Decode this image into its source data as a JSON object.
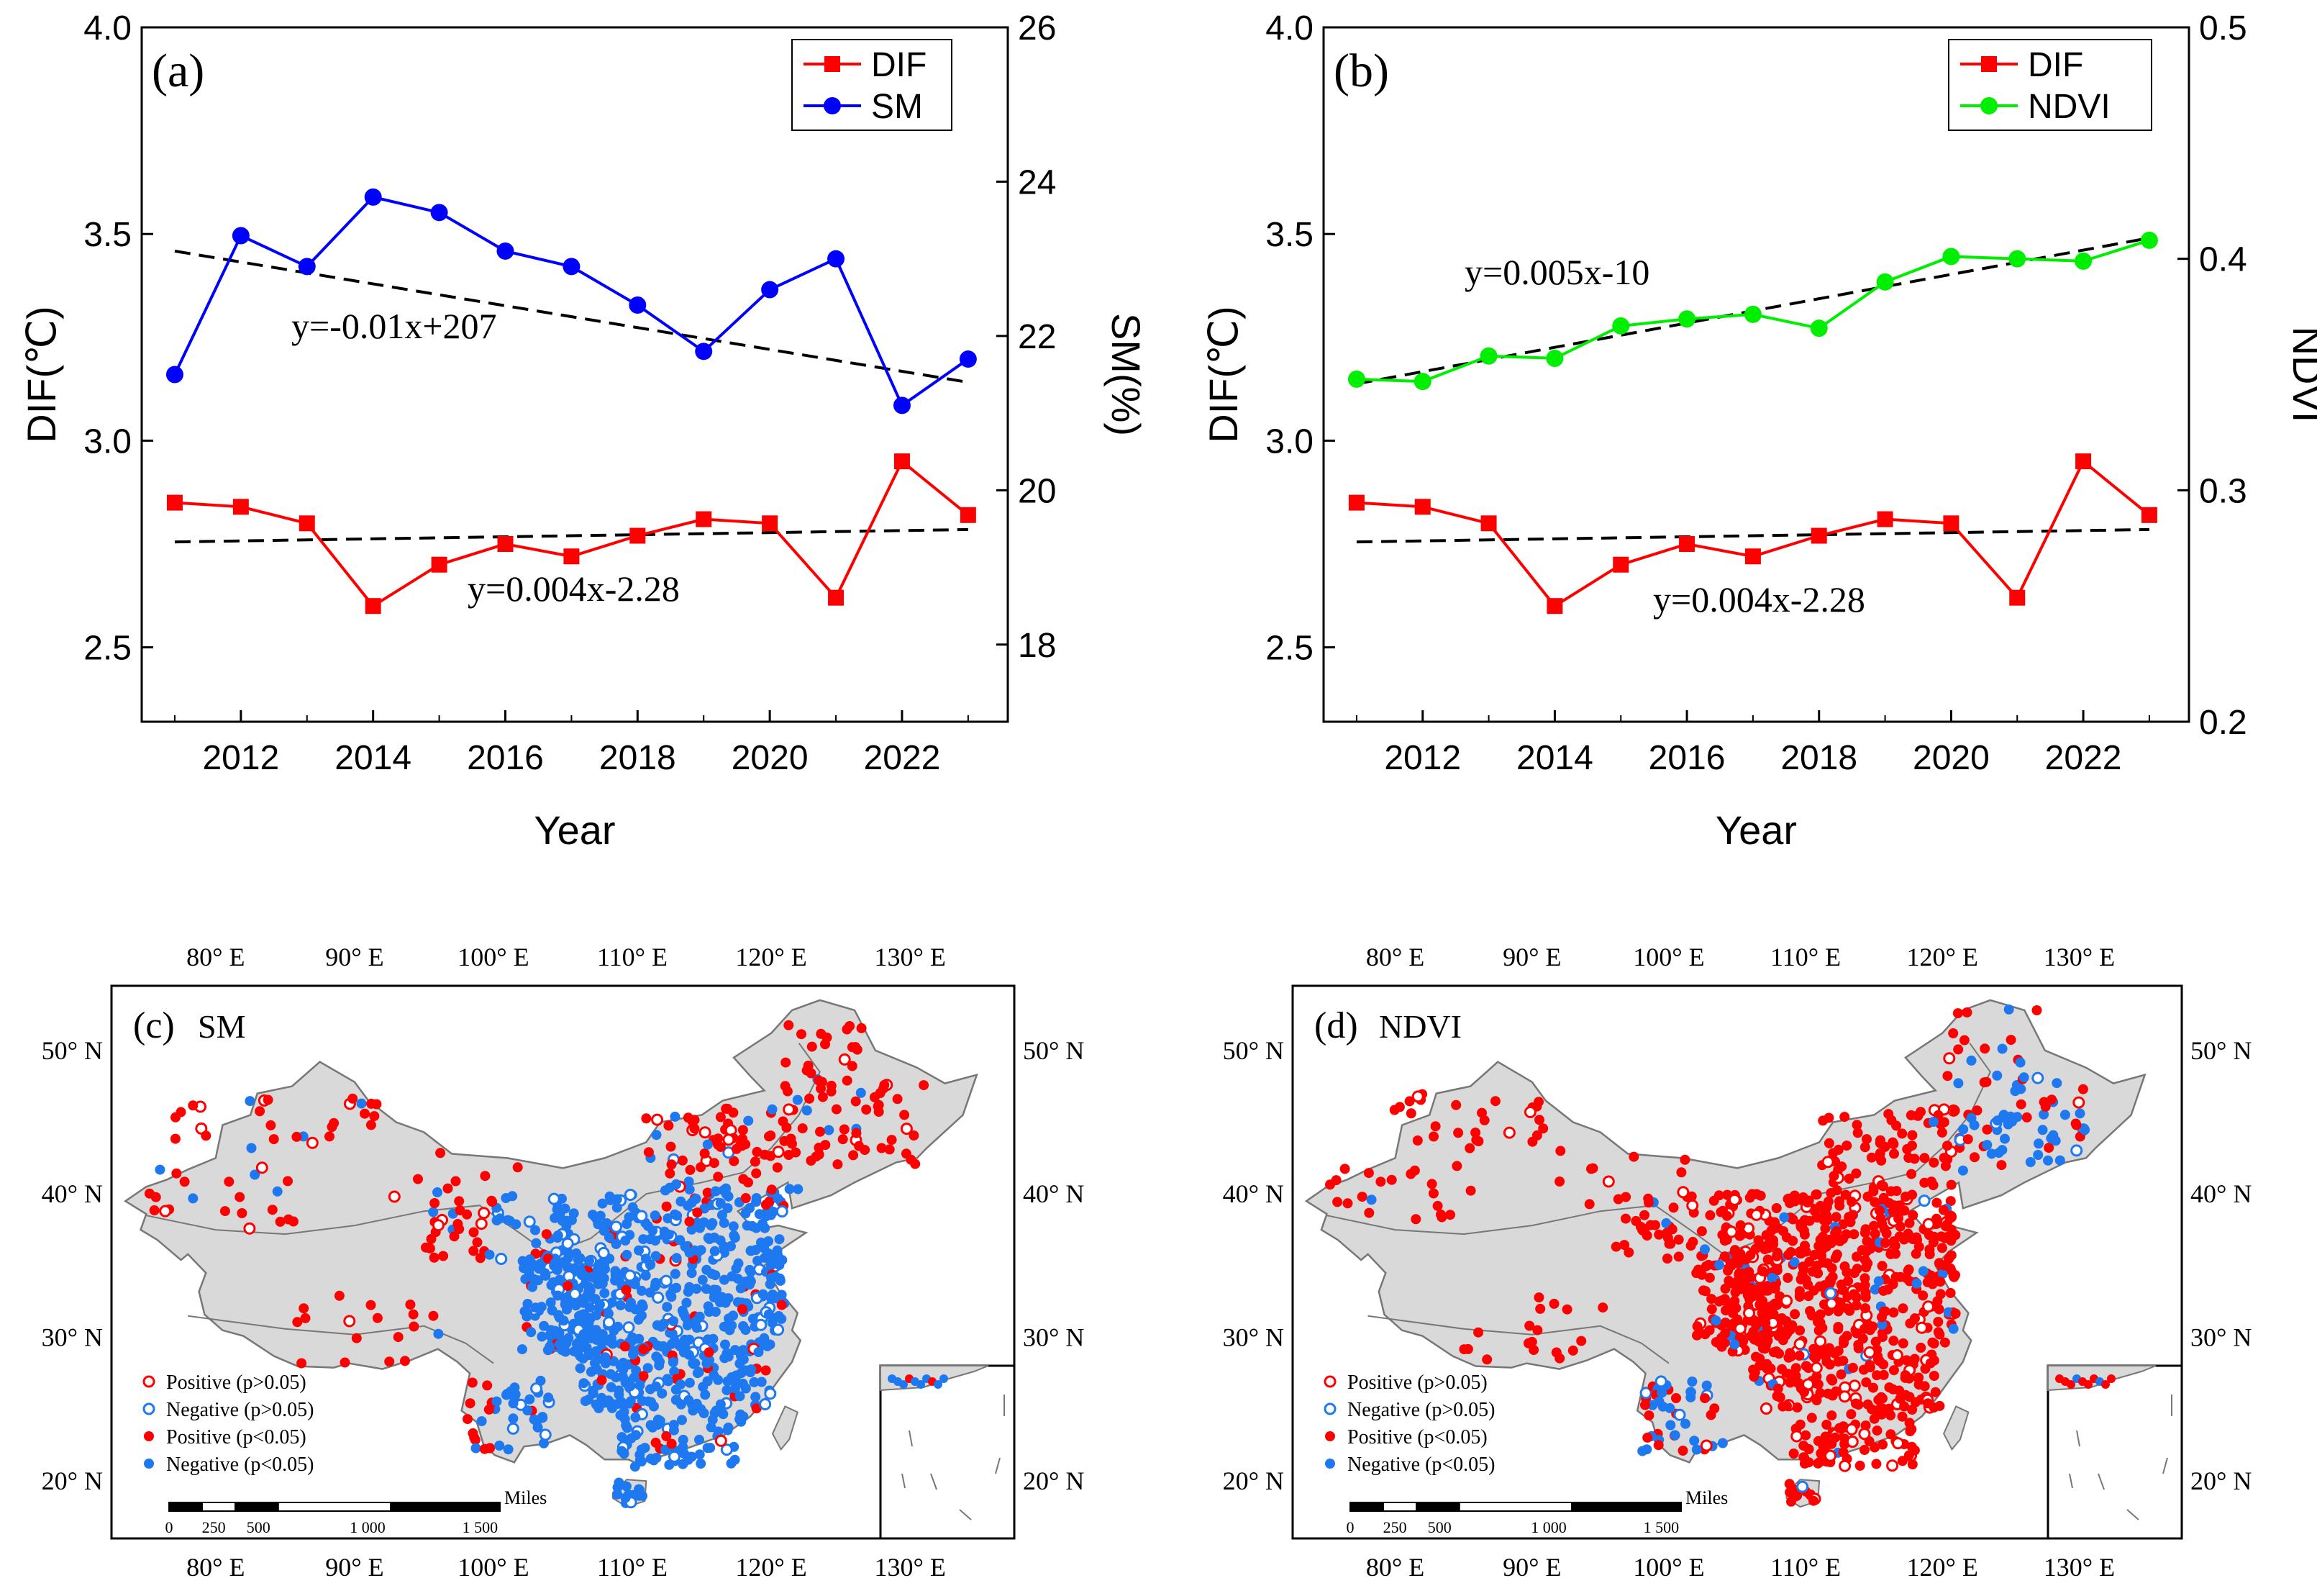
{
  "colors": {
    "dif": "#ff0000",
    "sm": "#0000ff",
    "ndvi": "#00ee00",
    "trend": "#000000",
    "land": "#d9d9d9",
    "border": "#777777",
    "positive": "#ff0000",
    "negative": "#1e78f0"
  },
  "chart_data": [
    {
      "type": "line",
      "panel_label": "(a)",
      "xlabel": "Year",
      "ylabel_left": "DIF(℃)",
      "ylabel_right": "SM(%)",
      "x_ticks": [
        "2012",
        "2014",
        "2016",
        "2018",
        "2020",
        "2022"
      ],
      "y_left_ticks": [
        "2.5",
        "3.0",
        "3.5",
        "4.0"
      ],
      "y_right_ticks": [
        "18",
        "20",
        "22",
        "24",
        "26"
      ],
      "xlim": [
        2010.5,
        2023.6
      ],
      "ylim_left": [
        2.32,
        4.0
      ],
      "ylim_right": [
        17.0,
        26.0
      ],
      "x": [
        2011,
        2012,
        2013,
        2014,
        2015,
        2016,
        2017,
        2018,
        2019,
        2020,
        2021,
        2022,
        2023
      ],
      "series": [
        {
          "name": "DIF",
          "axis": "left",
          "marker": "square",
          "color_key": "dif",
          "values": [
            2.85,
            2.84,
            2.8,
            2.6,
            2.7,
            2.75,
            2.72,
            2.77,
            2.81,
            2.8,
            2.62,
            2.95,
            2.82
          ]
        },
        {
          "name": "SM",
          "axis": "right",
          "marker": "circle",
          "color_key": "sm",
          "values": [
            21.5,
            23.3,
            22.9,
            23.8,
            23.6,
            23.1,
            22.9,
            22.4,
            21.8,
            22.6,
            23.0,
            21.1,
            21.7
          ]
        }
      ],
      "trendlines": [
        {
          "axis": "right",
          "x": [
            2011,
            2023
          ],
          "y": [
            23.1,
            21.4
          ],
          "label": "y=-0.01x+207"
        },
        {
          "axis": "left",
          "x": [
            2011,
            2023
          ],
          "y": [
            2.755,
            2.785
          ],
          "label": "y=0.004x-2.28"
        }
      ],
      "legend": [
        "DIF",
        "SM"
      ],
      "legend_position": "top-right"
    },
    {
      "type": "line",
      "panel_label": "(b)",
      "xlabel": "Year",
      "ylabel_left": "DIF(℃)",
      "ylabel_right": "NDVI",
      "x_ticks": [
        "2012",
        "2014",
        "2016",
        "2018",
        "2020",
        "2022"
      ],
      "y_left_ticks": [
        "2.5",
        "3.0",
        "3.5",
        "4.0"
      ],
      "y_right_ticks": [
        "0.2",
        "0.3",
        "0.4",
        "0.5"
      ],
      "xlim": [
        2010.5,
        2023.6
      ],
      "ylim_left": [
        2.32,
        4.0
      ],
      "ylim_right": [
        0.2,
        0.5
      ],
      "x": [
        2011,
        2012,
        2013,
        2014,
        2015,
        2016,
        2017,
        2018,
        2019,
        2020,
        2021,
        2022,
        2023
      ],
      "series": [
        {
          "name": "DIF",
          "axis": "left",
          "marker": "square",
          "color_key": "dif",
          "values": [
            2.85,
            2.84,
            2.8,
            2.6,
            2.7,
            2.75,
            2.72,
            2.77,
            2.81,
            2.8,
            2.62,
            2.95,
            2.82
          ]
        },
        {
          "name": "NDVI",
          "axis": "right",
          "marker": "circle",
          "color_key": "ndvi",
          "values": [
            0.348,
            0.347,
            0.358,
            0.357,
            0.371,
            0.374,
            0.376,
            0.37,
            0.39,
            0.401,
            0.4,
            0.399,
            0.408
          ]
        }
      ],
      "trendlines": [
        {
          "axis": "right",
          "x": [
            2011,
            2023
          ],
          "y": [
            0.346,
            0.409
          ],
          "label": "y=0.005x-10"
        },
        {
          "axis": "left",
          "x": [
            2011,
            2023
          ],
          "y": [
            2.755,
            2.785
          ],
          "label": "y=0.004x-2.28"
        }
      ],
      "legend": [
        "DIF",
        "NDVI"
      ],
      "legend_position": "top-right"
    }
  ],
  "maps": [
    {
      "panel_label": "(c)",
      "variable": "SM",
      "lon_labels": [
        "80° E",
        "90° E",
        "100° E",
        "110° E",
        "120° E",
        "130° E"
      ],
      "lat_labels": [
        "20° N",
        "30° N",
        "40° N",
        "50° N"
      ],
      "lon_range": [
        72.5,
        137.5
      ],
      "lat_range": [
        16.0,
        54.5
      ],
      "legend": [
        "Positive (p>0.05)",
        "Negative (p>0.05)",
        "Positive (p<0.05)",
        "Negative (p<0.05)"
      ],
      "scale_label": "Miles",
      "scale_ticks": [
        "0",
        "250",
        "500",
        "1 000",
        "1 500"
      ],
      "dominant": "negative"
    },
    {
      "panel_label": "(d)",
      "variable": "NDVI",
      "lon_labels": [
        "80° E",
        "90° E",
        "100° E",
        "110° E",
        "120° E",
        "130° E"
      ],
      "lat_labels": [
        "20° N",
        "30° N",
        "40° N",
        "50° N"
      ],
      "lon_range": [
        72.5,
        137.5
      ],
      "lat_range": [
        16.0,
        54.5
      ],
      "legend": [
        "Positive (p>0.05)",
        "Negative (p>0.05)",
        "Positive (p<0.05)",
        "Negative (p<0.05)"
      ],
      "scale_label": "Miles",
      "scale_ticks": [
        "0",
        "250",
        "500",
        "1 000",
        "1 500"
      ],
      "dominant": "positive"
    }
  ]
}
